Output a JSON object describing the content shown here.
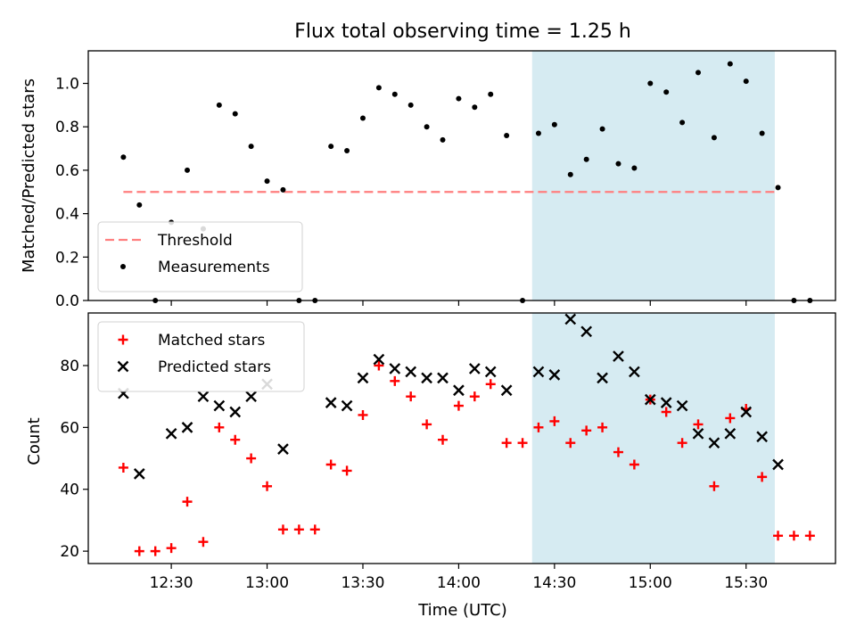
{
  "chart_data": [
    {
      "type": "scatter",
      "title": "Flux total observing time = 1.25 h",
      "ylabel": "Matched/Predicted stars",
      "xlabel": "",
      "ylim": [
        0,
        1.15
      ],
      "yticks": [
        "0.0",
        "0.2",
        "0.4",
        "0.6",
        "0.8",
        "1.0"
      ],
      "grid": false,
      "legend_position": "lower-left",
      "threshold": {
        "name": "Threshold",
        "value": 0.5,
        "x_range": [
          "12:15",
          "15:40"
        ],
        "color": "#ff7f7f",
        "style": "dashed"
      },
      "series": [
        {
          "name": "Measurements",
          "marker": "dot",
          "color": "#000000",
          "points": [
            [
              "12:15",
              0.66
            ],
            [
              "12:20",
              0.44
            ],
            [
              "12:25",
              0.0
            ],
            [
              "12:30",
              0.36
            ],
            [
              "12:35",
              0.6
            ],
            [
              "12:40",
              0.33
            ],
            [
              "12:45",
              0.9
            ],
            [
              "12:50",
              0.86
            ],
            [
              "12:55",
              0.71
            ],
            [
              "13:00",
              0.55
            ],
            [
              "13:05",
              0.51
            ],
            [
              "13:10",
              0.0
            ],
            [
              "13:15",
              0.0
            ],
            [
              "13:20",
              0.71
            ],
            [
              "13:25",
              0.69
            ],
            [
              "13:30",
              0.84
            ],
            [
              "13:35",
              0.98
            ],
            [
              "13:40",
              0.95
            ],
            [
              "13:45",
              0.9
            ],
            [
              "13:50",
              0.8
            ],
            [
              "13:55",
              0.74
            ],
            [
              "14:00",
              0.93
            ],
            [
              "14:05",
              0.89
            ],
            [
              "14:10",
              0.95
            ],
            [
              "14:15",
              0.76
            ],
            [
              "14:20",
              0.0
            ],
            [
              "14:25",
              0.77
            ],
            [
              "14:30",
              0.81
            ],
            [
              "14:35",
              0.58
            ],
            [
              "14:40",
              0.65
            ],
            [
              "14:45",
              0.79
            ],
            [
              "14:50",
              0.63
            ],
            [
              "14:55",
              0.61
            ],
            [
              "15:00",
              1.0
            ],
            [
              "15:05",
              0.96
            ],
            [
              "15:10",
              0.82
            ],
            [
              "15:15",
              1.05
            ],
            [
              "15:20",
              0.75
            ],
            [
              "15:25",
              1.09
            ],
            [
              "15:30",
              1.01
            ],
            [
              "15:35",
              0.77
            ],
            [
              "15:40",
              0.52
            ],
            [
              "15:45",
              0.0
            ],
            [
              "15:50",
              0.0
            ]
          ]
        }
      ],
      "shaded_region": {
        "x_range": [
          "14:23",
          "15:39"
        ],
        "color": "#add8e6"
      }
    },
    {
      "type": "scatter",
      "title": "",
      "xlabel": "Time (UTC)",
      "ylabel": "Count",
      "ylim": [
        16,
        97
      ],
      "yticks": [
        "20",
        "40",
        "60",
        "80"
      ],
      "xticks": [
        "12:30",
        "13:00",
        "13:30",
        "14:00",
        "14:30",
        "15:00",
        "15:30"
      ],
      "grid": false,
      "legend_position": "top-left",
      "series": [
        {
          "name": "Matched stars",
          "marker": "plus",
          "color": "#ff0000",
          "points": [
            [
              "12:15",
              47
            ],
            [
              "12:20",
              20
            ],
            [
              "12:25",
              20
            ],
            [
              "12:30",
              21
            ],
            [
              "12:35",
              36
            ],
            [
              "12:40",
              23
            ],
            [
              "12:45",
              60
            ],
            [
              "12:50",
              56
            ],
            [
              "12:55",
              50
            ],
            [
              "13:00",
              41
            ],
            [
              "13:05",
              27
            ],
            [
              "13:10",
              27
            ],
            [
              "13:15",
              27
            ],
            [
              "13:20",
              48
            ],
            [
              "13:25",
              46
            ],
            [
              "13:30",
              64
            ],
            [
              "13:35",
              80
            ],
            [
              "13:40",
              75
            ],
            [
              "13:45",
              70
            ],
            [
              "13:50",
              61
            ],
            [
              "13:55",
              56
            ],
            [
              "14:00",
              67
            ],
            [
              "14:05",
              70
            ],
            [
              "14:10",
              74
            ],
            [
              "14:15",
              55
            ],
            [
              "14:20",
              55
            ],
            [
              "14:25",
              60
            ],
            [
              "14:30",
              62
            ],
            [
              "14:35",
              55
            ],
            [
              "14:40",
              59
            ],
            [
              "14:45",
              60
            ],
            [
              "14:50",
              52
            ],
            [
              "14:55",
              48
            ],
            [
              "15:00",
              69
            ],
            [
              "15:05",
              65
            ],
            [
              "15:10",
              55
            ],
            [
              "15:15",
              61
            ],
            [
              "15:20",
              41
            ],
            [
              "15:25",
              63
            ],
            [
              "15:30",
              66
            ],
            [
              "15:35",
              44
            ],
            [
              "15:40",
              25
            ],
            [
              "15:45",
              25
            ],
            [
              "15:50",
              25
            ]
          ]
        },
        {
          "name": "Predicted stars",
          "marker": "x",
          "color": "#000000",
          "points": [
            [
              "12:15",
              71
            ],
            [
              "12:20",
              45
            ],
            [
              "12:30",
              58
            ],
            [
              "12:35",
              60
            ],
            [
              "12:40",
              70
            ],
            [
              "12:45",
              67
            ],
            [
              "12:50",
              65
            ],
            [
              "12:55",
              70
            ],
            [
              "13:00",
              74
            ],
            [
              "13:05",
              53
            ],
            [
              "13:20",
              68
            ],
            [
              "13:25",
              67
            ],
            [
              "13:30",
              76
            ],
            [
              "13:35",
              82
            ],
            [
              "13:40",
              79
            ],
            [
              "13:45",
              78
            ],
            [
              "13:50",
              76
            ],
            [
              "13:55",
              76
            ],
            [
              "14:00",
              72
            ],
            [
              "14:05",
              79
            ],
            [
              "14:10",
              78
            ],
            [
              "14:15",
              72
            ],
            [
              "14:25",
              78
            ],
            [
              "14:30",
              77
            ],
            [
              "14:35",
              95
            ],
            [
              "14:40",
              91
            ],
            [
              "14:45",
              76
            ],
            [
              "14:50",
              83
            ],
            [
              "14:55",
              78
            ],
            [
              "15:00",
              69
            ],
            [
              "15:05",
              68
            ],
            [
              "15:10",
              67
            ],
            [
              "15:15",
              58
            ],
            [
              "15:20",
              55
            ],
            [
              "15:25",
              58
            ],
            [
              "15:30",
              65
            ],
            [
              "15:35",
              57
            ],
            [
              "15:40",
              48
            ]
          ]
        }
      ],
      "shaded_region": {
        "x_range": [
          "14:23",
          "15:39"
        ],
        "color": "#add8e6"
      }
    }
  ]
}
